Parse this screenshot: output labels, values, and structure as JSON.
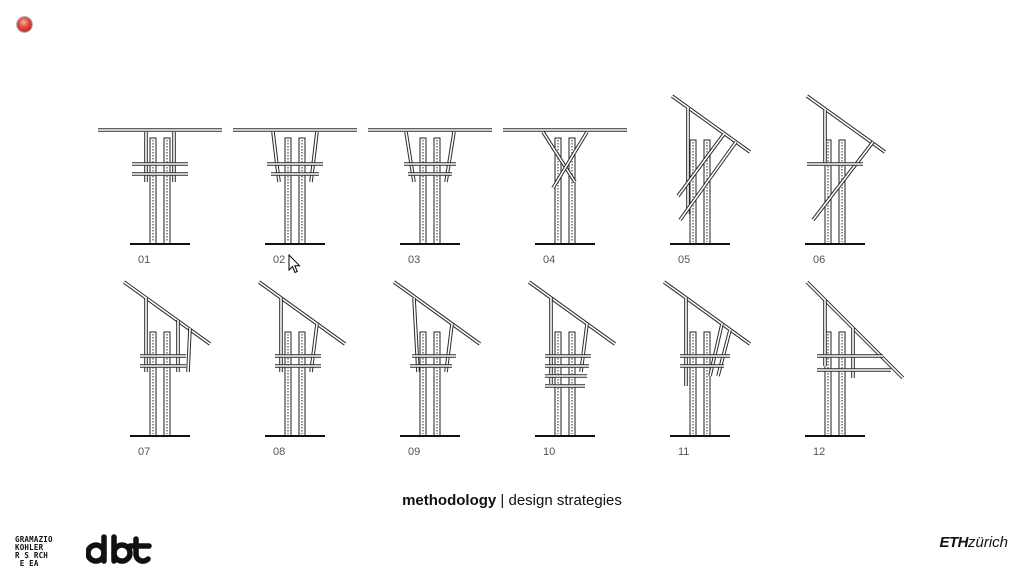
{
  "window": {
    "close_color": "#de4a3e"
  },
  "variants": {
    "row1": [
      "01",
      "02",
      "03",
      "04",
      "05",
      "06"
    ],
    "row2": [
      "07",
      "08",
      "09",
      "10",
      "11",
      "12"
    ]
  },
  "caption": {
    "bold": "methodology",
    "separator": " | ",
    "rest": "design strategies"
  },
  "logos": {
    "gkr": [
      "GRAMAZIO",
      "KOHLER",
      "R S RCH",
      " E EA"
    ],
    "dbt": "dbt",
    "eth_bold": "ETH",
    "eth_rest": "zürich"
  },
  "icons": {
    "close": "close-circle-icon",
    "pointer": "mouse-pointer-icon"
  }
}
